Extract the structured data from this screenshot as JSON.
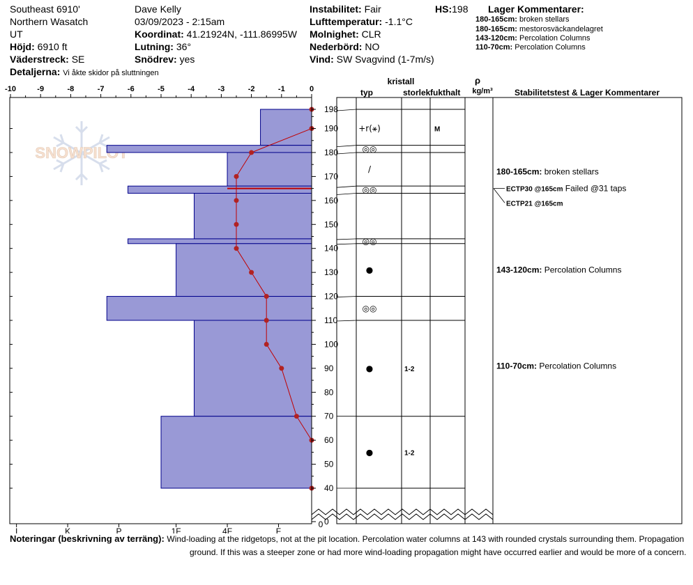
{
  "header": {
    "location1": "Southeast 6910'",
    "location2": "Northern Wasatch",
    "location3": "UT",
    "elevation_label": "Höjd:",
    "elevation_value": "6910 ft",
    "aspect_label": "Väderstreck:",
    "aspect_value": "SE",
    "observer": "Dave Kelly",
    "datetime": "03/09/2023 - 2:15am",
    "coords_label": "Koordinat:",
    "coords_value": "41.21924N, -111.86995W",
    "slope_label": "Lutning:",
    "slope_value": "36°",
    "drift_label": "Snödrev:",
    "drift_value": "yes",
    "instab_label": "Instabilitet:",
    "instab_value": "Fair",
    "airtemp_label": "Lufttemperatur:",
    "airtemp_value": "-1.1°C",
    "sky_label": "Molnighet:",
    "sky_value": "CLR",
    "precip_label": "Nederbörd:",
    "precip_value": "NO",
    "wind_label": "Vind:",
    "wind_value": "SW Svagvind (1-7m/s)",
    "hs_label": "HS:",
    "hs_value": "198",
    "details_label": "Detaljerna:",
    "details_value": "Vi åkte skidor på sluttningen",
    "layer_comments_title": "Lager Kommentarer:",
    "layer_comments": [
      {
        "range": "180-165cm:",
        "text": "broken stellars"
      },
      {
        "range": "180-165cm:",
        "text": "mestorosväckandelagret"
      },
      {
        "range": "143-120cm:",
        "text": "Percolation Columns"
      },
      {
        "range": "110-70cm:",
        "text": "Percolation Columns"
      }
    ]
  },
  "logo_text": "SNOWPILOT",
  "columns": {
    "kristall": "kristall",
    "typ": "typ",
    "size": "storlek",
    "moisture": "fukthalt",
    "rho": "ρ",
    "rho_unit": "kg/m³",
    "stability": "Stabilitetstest & Lager Kommentarer"
  },
  "notes": {
    "label": "Noteringar (beskrivning av terräng):",
    "line1": "Wind-loading at the ridgetops, not at the pit location. Percolation water columns at 143 with rounded crystals surrounding them. Propagation",
    "line2": "ground.  If this was a steeper zone or had more wind-loading propagation might have occurred earlier and would be more of a concern."
  },
  "chart_data": {
    "type": "snow-profile",
    "temp_axis": {
      "ticks": [
        "-10",
        "-9",
        "-8",
        "-7",
        "-6",
        "-5",
        "-4",
        "-3",
        "-2",
        "-1",
        "0"
      ],
      "min": -10,
      "max": 0
    },
    "hardness_axis": {
      "ticks": [
        "I",
        "K",
        "P",
        "1F",
        "4F",
        "F"
      ]
    },
    "height_axis": {
      "min": 0,
      "max": 198,
      "ticks": [
        "198",
        "190",
        "180",
        "170",
        "160",
        "150",
        "140",
        "130",
        "120",
        "110",
        "100",
        "90",
        "80",
        "70",
        "60",
        "50",
        "40",
        "0"
      ]
    },
    "bottom_label": "0",
    "hardness_layers": [
      {
        "top": 198,
        "bottom": 183,
        "temp_equiv": -1.7
      },
      {
        "top": 183,
        "bottom": 180,
        "temp_equiv": -6.8
      },
      {
        "top": 180,
        "bottom": 166,
        "temp_equiv": -2.8
      },
      {
        "top": 166,
        "bottom": 163,
        "temp_equiv": -6.1
      },
      {
        "top": 163,
        "bottom": 144,
        "temp_equiv": -3.9
      },
      {
        "top": 144,
        "bottom": 142,
        "temp_equiv": -6.1
      },
      {
        "top": 142,
        "bottom": 120,
        "temp_equiv": -4.5
      },
      {
        "top": 120,
        "bottom": 110,
        "temp_equiv": -6.8
      },
      {
        "top": 110,
        "bottom": 70,
        "temp_equiv": -3.9
      },
      {
        "top": 70,
        "bottom": 40,
        "temp_equiv": -5.0
      }
    ],
    "temperature_profile": [
      {
        "h": 198,
        "t": 0
      },
      {
        "h": 190,
        "t": 0
      },
      {
        "h": 180,
        "t": -2.0
      },
      {
        "h": 170,
        "t": -2.5
      },
      {
        "h": 160,
        "t": -2.5
      },
      {
        "h": 150,
        "t": -2.5
      },
      {
        "h": 140,
        "t": -2.5
      },
      {
        "h": 130,
        "t": -2.0
      },
      {
        "h": 120,
        "t": -1.5
      },
      {
        "h": 110,
        "t": -1.5
      },
      {
        "h": 100,
        "t": -1.5
      },
      {
        "h": 90,
        "t": -1.0
      },
      {
        "h": 70,
        "t": -0.5
      },
      {
        "h": 60,
        "t": 0
      },
      {
        "h": 40,
        "t": 0
      }
    ],
    "failure_layer": 165,
    "layer_boundaries": [
      198,
      183,
      180,
      166,
      163,
      144,
      142,
      120,
      110,
      70,
      40
    ],
    "crystals": [
      {
        "h": 190,
        "type": "+r(⚹)",
        "moisture": "M"
      },
      {
        "h": 181.5,
        "type": "◎◎"
      },
      {
        "h": 173,
        "type": "/"
      },
      {
        "h": 164.5,
        "type": "◎◎"
      },
      {
        "h": 143,
        "type": "◎◎"
      },
      {
        "h": 131,
        "type": "●"
      },
      {
        "h": 115,
        "type": "◎◎"
      },
      {
        "h": 90,
        "type": "●",
        "size": "1-2"
      },
      {
        "h": 55,
        "type": "●",
        "size": "1-2"
      }
    ],
    "stability_comments": [
      {
        "h": 172,
        "bold": "180-165cm:",
        "text": "broken stellars"
      },
      {
        "h": 165,
        "bold": "ECTP30 @165cm",
        "text": "Failed @31 taps"
      },
      {
        "h": 159,
        "bold": "ECTP21 @165cm",
        "text": ""
      },
      {
        "h": 131,
        "bold": "143-120cm:",
        "text": "Percolation Columns"
      },
      {
        "h": 91,
        "bold": "110-70cm:",
        "text": "Percolation Columns"
      }
    ]
  }
}
